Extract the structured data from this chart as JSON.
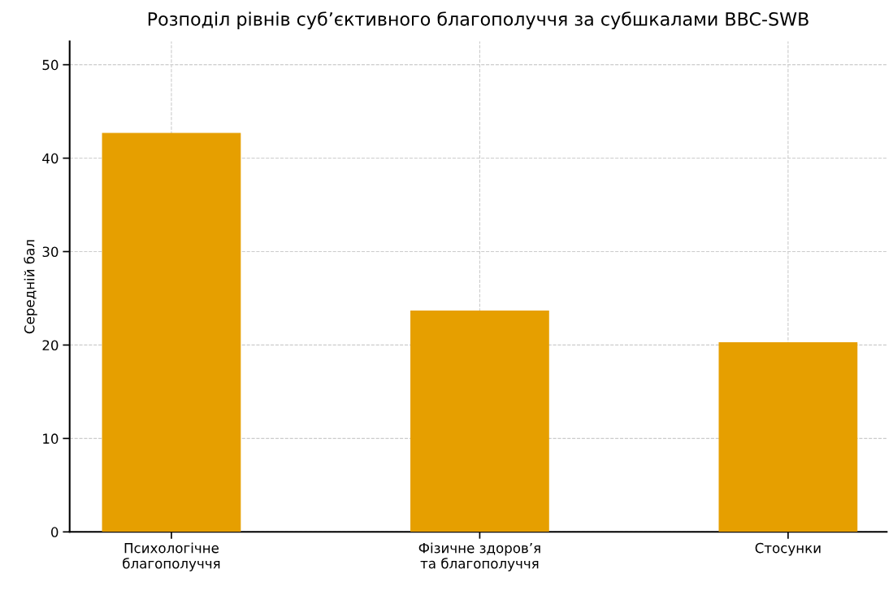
{
  "chart_data": {
    "type": "bar",
    "title": "Розподіл рівнів суб’єктивного благополуччя за субшкалами BBC-SWB",
    "ylabel": "Середній бал",
    "categories": [
      "Психологічне\nблагополуччя",
      "Фізичне здоров’я\nта благополуччя",
      "Стосунки"
    ],
    "values": [
      42.7,
      23.7,
      20.3
    ],
    "color": "#e69f00",
    "ylim": [
      0,
      52.5
    ],
    "yticks": [
      0,
      10,
      20,
      30,
      40,
      50
    ],
    "grid": true
  }
}
